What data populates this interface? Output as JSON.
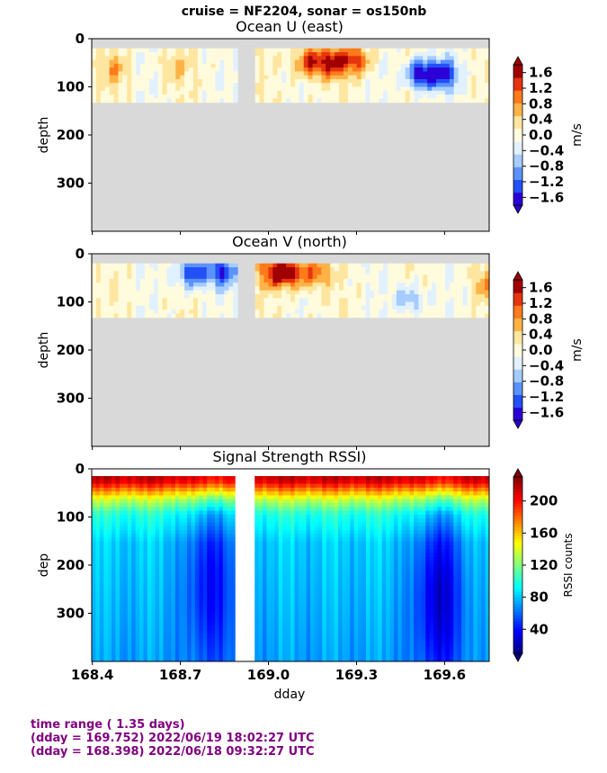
{
  "suptitle": "cruise = NF2204,  sonar = os150nb",
  "footer": {
    "line1": "time range ( 1.35 days)",
    "line2": "(dday = 169.752) 2022/06/19 18:02:27 UTC",
    "line3": "(dday = 168.398) 2022/06/18 09:32:27 UTC"
  },
  "colors": {
    "no_data": "#d9d9d9",
    "velocity_cmap": [
      "#2b00d6",
      "#2250f5",
      "#5b92ff",
      "#a6ccff",
      "#e2f1ff",
      "#fffbdc",
      "#ffe6a0",
      "#ffb347",
      "#ff7a1a",
      "#e6340f",
      "#a00000"
    ],
    "rssi_cmap": [
      "#00007f",
      "#0000ff",
      "#007fff",
      "#00ffff",
      "#7fff7f",
      "#ffff00",
      "#ff7f00",
      "#ff0000",
      "#7f0000"
    ]
  },
  "chart_data": [
    {
      "type": "heatmap",
      "title": "Ocean U (east)",
      "xlabel": "",
      "ylabel": "depth",
      "xlim": [
        168.398,
        169.752
      ],
      "ylim": [
        400,
        0
      ],
      "yticks": [
        "0",
        "100",
        "200",
        "300"
      ],
      "colorbar": {
        "label": "m/s",
        "range": [
          -1.8,
          1.8
        ],
        "ticks": [
          "1.6",
          "1.2",
          "0.8",
          "0.4",
          "0.0",
          "−0.4",
          "−0.8",
          "−1.2",
          "−1.6"
        ]
      },
      "valid_depth_range": [
        20,
        130
      ],
      "data_gap_dday": [
        168.89,
        168.95
      ],
      "features": [
        {
          "dday": 168.47,
          "depth": 60,
          "value": 0.6
        },
        {
          "dday": 168.68,
          "depth": 55,
          "value": 0.5
        },
        {
          "dday": 169.14,
          "depth": 45,
          "value": 1.4
        },
        {
          "dday": 169.22,
          "depth": 45,
          "value": 1.4
        },
        {
          "dday": 169.3,
          "depth": 40,
          "value": 1.2
        },
        {
          "dday": 169.52,
          "depth": 70,
          "value": -1.8
        },
        {
          "dday": 169.6,
          "depth": 70,
          "value": -1.4
        }
      ]
    },
    {
      "type": "heatmap",
      "title": "Ocean V (north)",
      "xlabel": "",
      "ylabel": "depth",
      "xlim": [
        168.398,
        169.752
      ],
      "ylim": [
        400,
        0
      ],
      "yticks": [
        "0",
        "100",
        "200",
        "300"
      ],
      "colorbar": {
        "label": "m/s",
        "range": [
          -1.8,
          1.8
        ],
        "ticks": [
          "1.6",
          "1.2",
          "0.8",
          "0.4",
          "0.0",
          "−0.4",
          "−0.8",
          "−1.2",
          "−1.6"
        ]
      },
      "valid_depth_range": [
        20,
        130
      ],
      "data_gap_dday": [
        168.89,
        168.95
      ],
      "features": [
        {
          "dday": 168.74,
          "depth": 35,
          "value": -1.6
        },
        {
          "dday": 168.84,
          "depth": 35,
          "value": -1.4
        },
        {
          "dday": 169.02,
          "depth": 35,
          "value": 1.4
        },
        {
          "dday": 169.08,
          "depth": 35,
          "value": 1.4
        },
        {
          "dday": 169.16,
          "depth": 35,
          "value": 1.0
        },
        {
          "dday": 169.48,
          "depth": 90,
          "value": -0.8
        },
        {
          "dday": 169.74,
          "depth": 60,
          "value": 0.7
        }
      ]
    },
    {
      "type": "heatmap",
      "title": "Signal Strength RSSI)",
      "xlabel": "dday",
      "ylabel": "dep",
      "xlim": [
        168.398,
        169.752
      ],
      "ylim": [
        400,
        0
      ],
      "xticks": [
        "168.4",
        "168.7",
        "169.0",
        "169.3",
        "169.6"
      ],
      "xtick_values": [
        168.4,
        168.7,
        169.0,
        169.3,
        169.6
      ],
      "yticks": [
        "0",
        "100",
        "200",
        "300"
      ],
      "colorbar": {
        "label": "RSSI counts",
        "range": [
          10,
          230
        ],
        "ticks": [
          "200",
          "160",
          "120",
          "80",
          "40"
        ]
      },
      "data_gap_dday": [
        168.89,
        168.95
      ],
      "profile": [
        {
          "depth": 20,
          "value": 215
        },
        {
          "depth": 40,
          "value": 175
        },
        {
          "depth": 60,
          "value": 135
        },
        {
          "depth": 90,
          "value": 100
        },
        {
          "depth": 150,
          "value": 82
        },
        {
          "depth": 400,
          "value": 72
        }
      ],
      "features": [
        {
          "dday": 168.8,
          "depth": 220,
          "value": 35
        },
        {
          "dday": 169.58,
          "depth": 250,
          "value": 25
        }
      ]
    }
  ]
}
